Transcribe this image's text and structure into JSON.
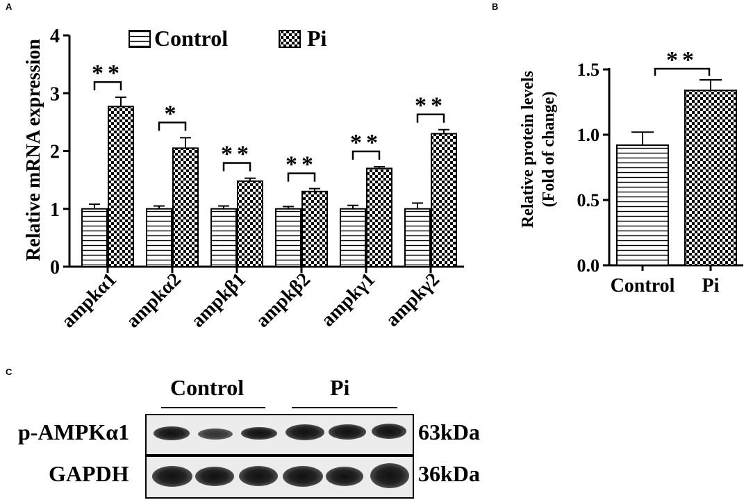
{
  "panels": {
    "a": "A",
    "b": "B",
    "c": "C"
  },
  "chart_data": [
    {
      "type": "bar",
      "panel": "A",
      "ylabel": "Relative mRNA expression",
      "xlabel": "",
      "ylim": [
        0,
        4
      ],
      "yticks": [
        "0",
        "1",
        "2",
        "3",
        "4"
      ],
      "categories": [
        "ampkα1",
        "ampkα2",
        "ampkβ1",
        "ampkβ2",
        "ampkγ1",
        "ampkγ2"
      ],
      "series": [
        {
          "name": "Control",
          "pattern": "horizontal-stripes",
          "values": [
            1.0,
            1.0,
            1.0,
            1.0,
            1.0,
            1.0
          ],
          "errors": [
            0.08,
            0.05,
            0.05,
            0.04,
            0.06,
            0.1
          ]
        },
        {
          "name": "Pi",
          "pattern": "checkerboard",
          "values": [
            2.77,
            2.05,
            1.48,
            1.3,
            1.7,
            2.3
          ],
          "errors": [
            0.16,
            0.18,
            0.05,
            0.05,
            0.03,
            0.07
          ]
        }
      ],
      "significance": [
        "**",
        "*",
        "**",
        "**",
        "**",
        "**"
      ],
      "legend_position": "top",
      "grid": false
    },
    {
      "type": "bar",
      "panel": "B",
      "ylabel": "Relative protein levels",
      "ylabel2": "(Fold of change)",
      "xlabel": "",
      "ylim": [
        0,
        1.5
      ],
      "yticks": [
        "0.0",
        "0.5",
        "1.0",
        "1.5"
      ],
      "categories": [
        "Control",
        "Pi"
      ],
      "values": [
        0.92,
        1.34
      ],
      "errors": [
        0.1,
        0.08
      ],
      "patterns": [
        "horizontal-stripes",
        "checkerboard"
      ],
      "significance": "**",
      "grid": false
    }
  ],
  "blot": {
    "groups": [
      "Control",
      "Pi"
    ],
    "rows": [
      {
        "label": "p-AMPKα1",
        "size": "63kDa"
      },
      {
        "label": "GAPDH",
        "size": "36kDa"
      }
    ],
    "lanes": 6
  }
}
